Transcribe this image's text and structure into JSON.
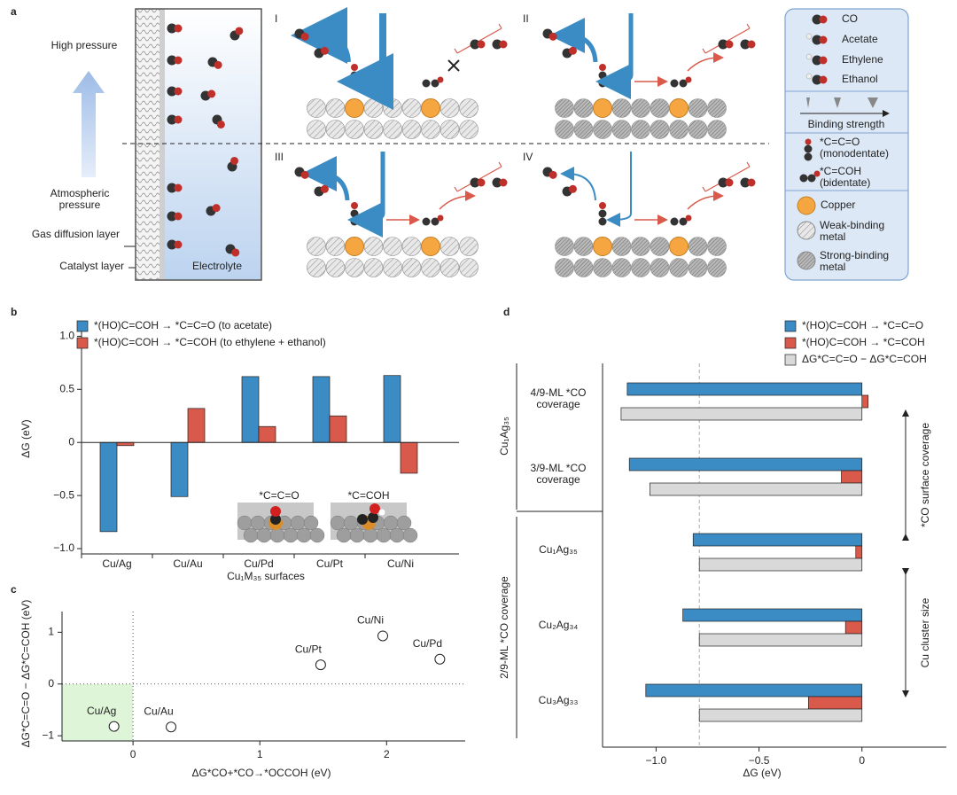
{
  "diagram": {
    "panel_label": "a",
    "high_pressure": "High pressure",
    "atmospheric_pressure": "Atmospheric pressure",
    "gas_diffusion_layer": "Gas diffusion layer",
    "catalyst_layer": "Catalyst layer",
    "electrolyte": "Electrolyte",
    "scenarios": [
      "I",
      "II",
      "III",
      "IV"
    ],
    "legend": {
      "co": "CO",
      "acetate": "Acetate",
      "ethylene": "Ethylene",
      "ethanol": "Ethanol",
      "binding_strength": "Binding strength",
      "monodentate": "*C=C=O (monodentate)",
      "bidentate": "*C=COH (bidentate)",
      "copper": "Copper",
      "weak": "Weak-binding metal",
      "strong": "Strong-binding metal"
    }
  },
  "chart_data": [
    {
      "type": "bar",
      "panel_label": "b",
      "ylabel": "ΔG (eV)",
      "xlabel": "Cu₁M₃₅ surfaces",
      "categories": [
        "Cu/Ag",
        "Cu/Au",
        "Cu/Pd",
        "Cu/Pt",
        "Cu/Ni"
      ],
      "series": [
        {
          "name": "*(HO)C=COH → *C=C=O (to acetate)",
          "color": "#3b8bc4",
          "values": [
            -0.84,
            -0.51,
            0.62,
            0.62,
            0.63
          ]
        },
        {
          "name": "*(HO)C=COH → *C=COH (to ethylene + ethanol)",
          "color": "#d95a4b",
          "values": [
            -0.03,
            0.32,
            0.15,
            0.25,
            -0.29
          ]
        }
      ],
      "ylim": [
        -1.05,
        1.12
      ],
      "yticks": [
        {
          "value": -1.0,
          "label": "−1.0"
        },
        {
          "value": -0.5,
          "label": "−0.5"
        },
        0,
        0.5,
        {
          "value": 1.0,
          "label": "1.0"
        }
      ],
      "annotations": [
        "*C=C=O",
        "*C=COH"
      ],
      "legend": "upper left"
    },
    {
      "type": "scatter",
      "panel_label": "c",
      "xlabel": "ΔG*CO+*CO→*OCCOH (eV)",
      "ylabel": "ΔG*C=C=O − ΔG*C=COH (eV)",
      "labels": [
        "Cu/Ag",
        "Cu/Au",
        "Cu/Pt",
        "Cu/Ni",
        "Cu/Pd"
      ],
      "x": [
        -0.15,
        0.3,
        1.48,
        1.97,
        2.42
      ],
      "values": [
        -0.82,
        -0.83,
        0.37,
        0.93,
        0.48
      ],
      "xlim": [
        -0.56,
        2.62
      ],
      "ylim": [
        -1.1,
        1.4
      ],
      "xticks": [
        0,
        1,
        2
      ],
      "yticks": [
        {
          "value": -1,
          "label": "−1"
        },
        0,
        1
      ]
    },
    {
      "type": "hbar",
      "panel_label": "d",
      "xlabel": "ΔG (eV)",
      "categories": [
        "4/9-ML *CO coverage",
        "3/9-ML *CO coverage",
        "Cu₁Ag₃₅",
        "Cu₂Ag₃₄",
        "Cu₃Ag₃₃"
      ],
      "group_labels": [
        "Cu₁Ag₃₅",
        "2/9-ML *CO coverage"
      ],
      "annotations": [
        "*CO surface coverage",
        "Cu cluster size"
      ],
      "series": [
        {
          "name": "*(HO)C=COH → *C=C=O",
          "color": "#3b8bc4",
          "values": [
            -1.14,
            -1.13,
            -0.82,
            -0.87,
            -1.05
          ]
        },
        {
          "name": "*(HO)C=COH → *C=COH",
          "color": "#d95a4b",
          "values": [
            0.03,
            -0.1,
            -0.03,
            -0.08,
            -0.26
          ]
        },
        {
          "name": "ΔG*C=C=O − ΔG*C=COH",
          "color": "#d9d9d9",
          "values": [
            -1.17,
            -1.03,
            -0.79,
            -0.79,
            -0.79
          ]
        }
      ],
      "reference_line": -0.79,
      "xlim": [
        -1.26,
        0.41
      ],
      "xticks": [
        {
          "value": -1.0,
          "label": "−1.0"
        },
        {
          "value": -0.5,
          "label": "−0.5"
        },
        0
      ]
    }
  ]
}
